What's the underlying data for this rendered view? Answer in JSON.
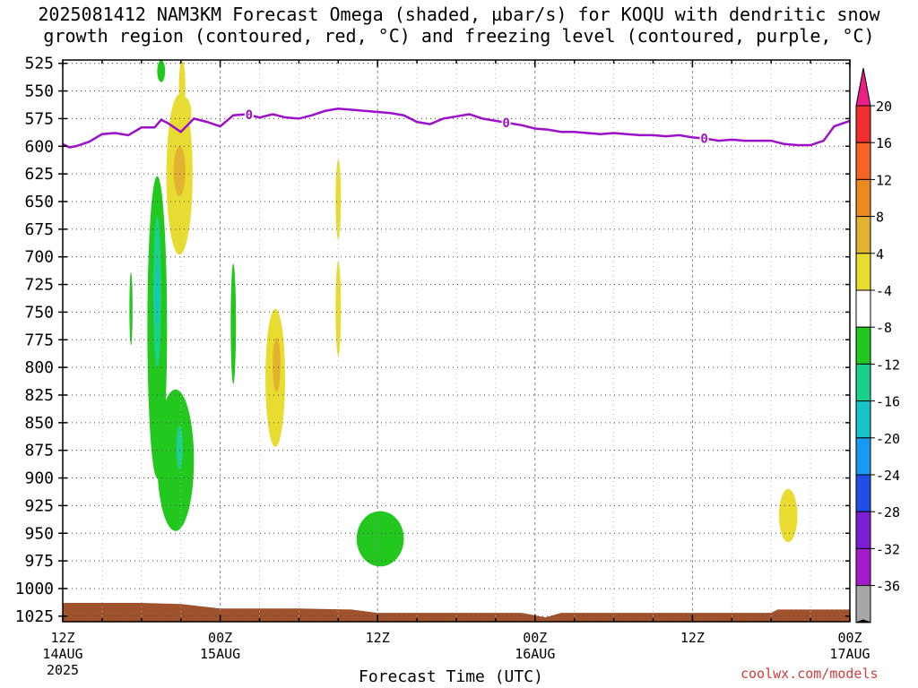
{
  "title_lines": [
    "2025081412 NAM3KM Forecast Omega (shaded, µbar/s) for KOQU with dendritic snow",
    "growth region (contoured, red, °C) and freezing level (contoured, purple, °C)"
  ],
  "credit": "coolwx.com/models",
  "chart_data": {
    "type": "heatmap",
    "xlabel": "Forecast Time (UTC)",
    "x_range": [
      0,
      60
    ],
    "x_unit": "forecast hour",
    "x_ticks": [
      {
        "hour": 0,
        "lines": [
          "12Z",
          "14AUG",
          "2025"
        ]
      },
      {
        "hour": 12,
        "lines": [
          "00Z",
          "15AUG"
        ]
      },
      {
        "hour": 24,
        "lines": [
          "12Z"
        ]
      },
      {
        "hour": 36,
        "lines": [
          "00Z",
          "16AUG"
        ]
      },
      {
        "hour": 48,
        "lines": [
          "12Z"
        ]
      },
      {
        "hour": 60,
        "lines": [
          "00Z",
          "17AUG"
        ]
      }
    ],
    "y_axis": "pressure (hPa), inverted",
    "y_range": [
      1030,
      522
    ],
    "y_ticks": [
      525,
      550,
      575,
      600,
      625,
      650,
      675,
      700,
      725,
      750,
      775,
      800,
      825,
      850,
      875,
      900,
      925,
      950,
      975,
      1000,
      1025
    ],
    "grid": true,
    "colorbar": {
      "labels": [
        "20",
        "16",
        "12",
        "8",
        "4",
        "-4",
        "-8",
        "-12",
        "-16",
        "-20",
        "-24",
        "-28",
        "-32",
        "-36"
      ],
      "colors": [
        "#ec1f87",
        "#ef2f2f",
        "#f56427",
        "#ec8a1f",
        "#e3b22e",
        "#e8dc31",
        "#ffffff",
        "#22c81e",
        "#1bd08c",
        "#18c3c6",
        "#169bf0",
        "#1f4fe6",
        "#7a1fd3",
        "#a41bcc",
        "#a7a7a7",
        "#000000"
      ]
    },
    "freezing_level": {
      "label": "0",
      "color": "#9b10c8",
      "points": [
        [
          0,
          598
        ],
        [
          0.5,
          601
        ],
        [
          1,
          600
        ],
        [
          2,
          596
        ],
        [
          3,
          589
        ],
        [
          4,
          588
        ],
        [
          5,
          590
        ],
        [
          6,
          583
        ],
        [
          7,
          583
        ],
        [
          7.5,
          576
        ],
        [
          8,
          579
        ],
        [
          9,
          587
        ],
        [
          10,
          575
        ],
        [
          11,
          578
        ],
        [
          12,
          582
        ],
        [
          13,
          572
        ],
        [
          14,
          571
        ],
        [
          15,
          574
        ],
        [
          16,
          571
        ],
        [
          17,
          574
        ],
        [
          18,
          575
        ],
        [
          19,
          572
        ],
        [
          20,
          568
        ],
        [
          21,
          566
        ],
        [
          22,
          567
        ],
        [
          23,
          568
        ],
        [
          24,
          569
        ],
        [
          25,
          570
        ],
        [
          26,
          572
        ],
        [
          27,
          578
        ],
        [
          28,
          580
        ],
        [
          29,
          575
        ],
        [
          30,
          573
        ],
        [
          31,
          571
        ],
        [
          32,
          575
        ],
        [
          33,
          577
        ],
        [
          34,
          579
        ],
        [
          35,
          581
        ],
        [
          36,
          584
        ],
        [
          37,
          585
        ],
        [
          38,
          587
        ],
        [
          39,
          587
        ],
        [
          40,
          588
        ],
        [
          41,
          589
        ],
        [
          42,
          588
        ],
        [
          43,
          589
        ],
        [
          44,
          590
        ],
        [
          45,
          590
        ],
        [
          46,
          591
        ],
        [
          47,
          590
        ],
        [
          48,
          592
        ],
        [
          49,
          593
        ],
        [
          50,
          595
        ],
        [
          51,
          594
        ],
        [
          52,
          595
        ],
        [
          53,
          595
        ],
        [
          54,
          595
        ],
        [
          55,
          598
        ],
        [
          56,
          599
        ],
        [
          57,
          599
        ],
        [
          58,
          595
        ],
        [
          58.8,
          582
        ],
        [
          60,
          577
        ]
      ],
      "labels_at_hours": [
        14.2,
        33.8,
        48.9
      ]
    },
    "omega_regions": [
      {
        "value_range": [
          4,
          8
        ],
        "color": "#e8dc31",
        "center": [
          8.9,
          625
        ],
        "half_width_hours": 1.0,
        "p_top": 553,
        "p_bottom": 698
      },
      {
        "value_range": [
          8,
          12
        ],
        "color": "#e3b22e",
        "center": [
          8.9,
          622
        ],
        "half_width_hours": 0.45,
        "p_top": 600,
        "p_bottom": 645
      },
      {
        "value_range": [
          4,
          8
        ],
        "color": "#e8dc31",
        "center": [
          9.2,
          568
        ],
        "half_width_hours": 0.6,
        "p_top": 555,
        "p_bottom": 585
      },
      {
        "value_range": [
          4,
          8
        ],
        "color": "#e8dc31",
        "center": [
          9.1,
          547
        ],
        "half_width_hours": 0.25,
        "p_top": 522,
        "p_bottom": 573
      },
      {
        "value_range": [
          4,
          8
        ],
        "color": "#e8dc31",
        "center": [
          16.2,
          810
        ],
        "half_width_hours": 0.75,
        "p_top": 747,
        "p_bottom": 872
      },
      {
        "value_range": [
          8,
          12
        ],
        "color": "#e3b22e",
        "center": [
          16.3,
          797
        ],
        "half_width_hours": 0.3,
        "p_top": 773,
        "p_bottom": 822
      },
      {
        "value_range": [
          4,
          8
        ],
        "color": "#e8dc31",
        "center": [
          21.0,
          647
        ],
        "half_width_hours": 0.2,
        "p_top": 612,
        "p_bottom": 684
      },
      {
        "value_range": [
          4,
          8
        ],
        "color": "#e8dc31",
        "center": [
          21.0,
          745
        ],
        "half_width_hours": 0.2,
        "p_top": 704,
        "p_bottom": 790
      },
      {
        "value_range": [
          4,
          8
        ],
        "color": "#e8dc31",
        "center": [
          55.3,
          932
        ],
        "half_width_hours": 0.7,
        "p_top": 910,
        "p_bottom": 958
      },
      {
        "value_range": [
          -8,
          -4
        ],
        "color": "#22c81e",
        "center": [
          7.2,
          760
        ],
        "half_width_hours": 0.75,
        "p_top": 627,
        "p_bottom": 900
      },
      {
        "value_range": [
          -8,
          -4
        ],
        "color": "#22c81e",
        "center": [
          8.6,
          890
        ],
        "half_width_hours": 1.4,
        "p_top": 820,
        "p_bottom": 948
      },
      {
        "value_range": [
          -12,
          -8
        ],
        "color": "#1bd08c",
        "center": [
          7.2,
          735
        ],
        "half_width_hours": 0.3,
        "p_top": 663,
        "p_bottom": 800
      },
      {
        "value_range": [
          -16,
          -12
        ],
        "color": "#18c3c6",
        "center": [
          7.2,
          735
        ],
        "half_width_hours": 0.13,
        "p_top": 708,
        "p_bottom": 762
      },
      {
        "value_range": [
          -12,
          -8
        ],
        "color": "#1bd08c",
        "center": [
          8.9,
          872
        ],
        "half_width_hours": 0.25,
        "p_top": 853,
        "p_bottom": 892
      },
      {
        "value_range": [
          -8,
          -4
        ],
        "color": "#22c81e",
        "center": [
          7.5,
          529
        ],
        "half_width_hours": 0.3,
        "p_top": 522,
        "p_bottom": 542
      },
      {
        "value_range": [
          -8,
          -4
        ],
        "color": "#22c81e",
        "center": [
          13.0,
          760
        ],
        "half_width_hours": 0.2,
        "p_top": 706,
        "p_bottom": 815
      },
      {
        "value_range": [
          -8,
          -4
        ],
        "color": "#22c81e",
        "center": [
          5.2,
          745
        ],
        "half_width_hours": 0.12,
        "p_top": 714,
        "p_bottom": 780
      },
      {
        "value_range": [
          -8,
          -4
        ],
        "color": "#22c81e",
        "center": [
          24.2,
          957
        ],
        "half_width_hours": 1.8,
        "p_top": 930,
        "p_bottom": 980
      }
    ],
    "surface": {
      "color": "#a0522d",
      "points": [
        [
          0,
          1013
        ],
        [
          6,
          1013
        ],
        [
          9,
          1014
        ],
        [
          12,
          1018
        ],
        [
          18,
          1018
        ],
        [
          22,
          1019
        ],
        [
          24,
          1022
        ],
        [
          30,
          1022
        ],
        [
          35,
          1022
        ],
        [
          36.8,
          1026
        ],
        [
          38,
          1022
        ],
        [
          48,
          1022
        ],
        [
          54,
          1022
        ],
        [
          54.5,
          1019
        ],
        [
          60,
          1019
        ]
      ]
    }
  }
}
